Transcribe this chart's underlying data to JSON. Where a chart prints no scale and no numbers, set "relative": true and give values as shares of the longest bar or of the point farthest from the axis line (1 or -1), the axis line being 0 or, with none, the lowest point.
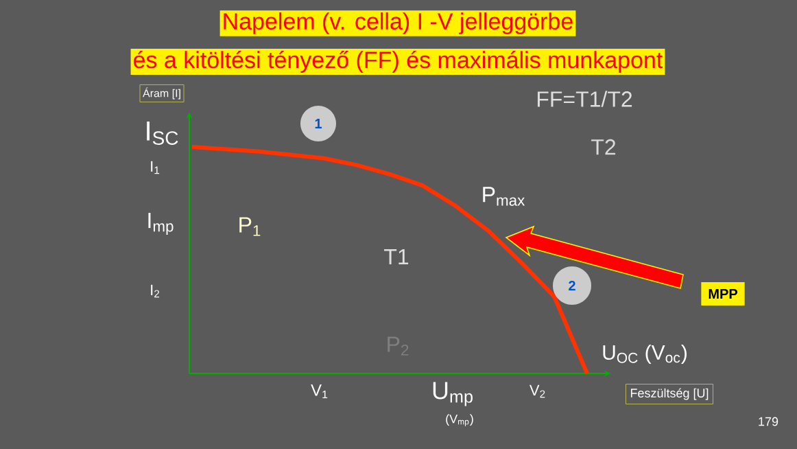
{
  "chart_data": {
    "type": "line",
    "title": "Napelem (v. cella) I  -V jelleggörbe",
    "subtitle": "és a kitöltési tényező (FF) és maximális munkapont",
    "xlabel": "Feszültség [U]",
    "ylabel": "Áram [I]",
    "categories": [
      null,
      null,
      null,
      null,
      null,
      null,
      null,
      null,
      null,
      null,
      null,
      null,
      null
    ],
    "values": [
      1.0,
      0.99,
      0.98,
      0.965,
      0.95,
      0.92,
      0.88,
      0.83,
      0.74,
      0.63,
      0.49,
      0.34,
      0
    ],
    "color": "#ff3300",
    "relative": true,
    "annotations": [
      "I$_{SC}$",
      "I$_{1}$",
      "I$_{mp}$",
      "I$_{2}$",
      "V$_{1}$",
      "U$_{mp}$",
      "(V$_{mp}$)",
      "V$_{2}$",
      "U$_{OC}$ (V$_{oc}$)",
      "P$_{max}$",
      "P$_{1}$",
      "P$_{2}$",
      "T1",
      "T2",
      "FF=T1/T2",
      "1",
      "2",
      "MPP",
      "179"
    ]
  }
}
